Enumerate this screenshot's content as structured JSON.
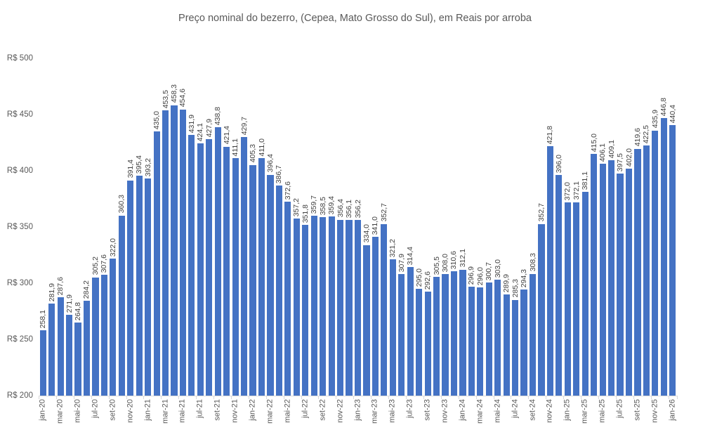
{
  "chart_data": {
    "type": "bar",
    "title": "Preço nominal do bezerro, (Cepea, Mato Grosso do Sul), em Reais por arroba",
    "bar_color": "#4472C4",
    "grid": false,
    "legend_position": "none",
    "decimal_separator": ",",
    "ylim": [
      200,
      500
    ],
    "ytick_values": [
      200,
      250,
      300,
      350,
      400,
      450,
      500
    ],
    "ytick_labels": [
      "R$ 200",
      "R$ 250",
      "R$ 300",
      "R$ 350",
      "R$ 400",
      "R$ 450",
      "R$ 500"
    ],
    "xtick_interval": 2,
    "categories": [
      "jan-20",
      "fev-20",
      "mar-20",
      "abr-20",
      "mai-20",
      "jun-20",
      "jul-20",
      "ago-20",
      "set-20",
      "out-20",
      "nov-20",
      "dez-20",
      "jan-21",
      "fev-21",
      "mar-21",
      "abr-21",
      "mai-21",
      "jun-21",
      "jul-21",
      "ago-21",
      "set-21",
      "out-21",
      "nov-21",
      "dez-21",
      "jan-22",
      "fev-22",
      "mar-22",
      "abr-22",
      "mai-22",
      "jun-22",
      "jul-22",
      "ago-22",
      "set-22",
      "out-22",
      "nov-22",
      "dez-22",
      "jan-23",
      "fev-23",
      "mar-23",
      "abr-23",
      "mai-23",
      "jun-23",
      "jul-23",
      "ago-23",
      "set-23",
      "out-23",
      "nov-23",
      "dez-23",
      "jan-24",
      "fev-24",
      "mar-24",
      "abr-24",
      "mai-24",
      "jun-24",
      "jul-24",
      "ago-24",
      "set-24",
      "out-24",
      "nov-24",
      "dez-24",
      "jan-25",
      "fev-25",
      "mar-25",
      "abr-25",
      "mai-25",
      "jun-25",
      "jul-25",
      "ago-25",
      "set-25",
      "out-25",
      "nov-25",
      "dez-25",
      "jan-26"
    ],
    "values": [
      258.1,
      281.9,
      287.6,
      271.9,
      264.8,
      284.2,
      305.2,
      307.6,
      322.0,
      360.3,
      391.4,
      395.4,
      393.2,
      435.0,
      453.5,
      458.3,
      454.6,
      431.9,
      424.1,
      427.9,
      438.8,
      421.4,
      411.1,
      429.7,
      405.3,
      411.0,
      396.4,
      386.7,
      372.6,
      357.2,
      351.8,
      359.7,
      358.5,
      359.4,
      356.4,
      356.1,
      356.2,
      334.0,
      341.0,
      352.7,
      321.2,
      307.9,
      314.4,
      295.0,
      292.6,
      305.5,
      308.0,
      310.6,
      312.1,
      296.9,
      296.0,
      300.7,
      303.0,
      289.9,
      285.3,
      294.3,
      308.3,
      352.7,
      421.8,
      396.0,
      372.0,
      372.1,
      381.1,
      415.0,
      406.1,
      409.1,
      397.5,
      402.0,
      419.6,
      422.5,
      435.9,
      446.8,
      440.4
    ]
  }
}
